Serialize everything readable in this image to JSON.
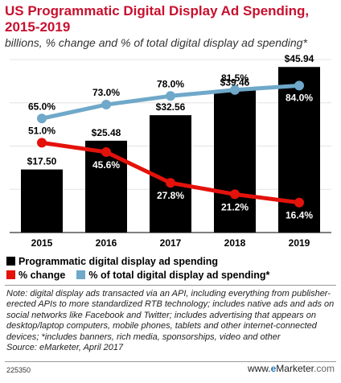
{
  "header": {
    "title": "US Programmatic Digital Display Ad Spending, 2015-2019",
    "subtitle": "billions, % change and % of total digital display ad spending*"
  },
  "chart_data": {
    "type": "bar",
    "categories": [
      "2015",
      "2016",
      "2017",
      "2018",
      "2019"
    ],
    "series": [
      {
        "name": "Programmatic digital display ad spending",
        "type": "bar",
        "values": [
          17.5,
          25.48,
          32.56,
          39.46,
          45.94
        ],
        "labels": [
          "$17.50",
          "$25.48",
          "$32.56",
          "$39.46",
          "$45.94"
        ],
        "color": "#000000"
      },
      {
        "name": "% change",
        "type": "line",
        "values": [
          51.0,
          45.6,
          27.8,
          21.2,
          16.4
        ],
        "labels": [
          "51.0%",
          "45.6%",
          "27.8%",
          "21.2%",
          "16.4%"
        ],
        "color": "#e3120b"
      },
      {
        "name": "% of total digital display ad spending*",
        "type": "line",
        "values": [
          65.0,
          73.0,
          78.0,
          81.5,
          84.0
        ],
        "labels": [
          "65.0%",
          "73.0%",
          "78.0%",
          "81.5%",
          "84.0%"
        ],
        "color": "#6fa8c9"
      }
    ],
    "legend_position": "bottom"
  },
  "note": {
    "text": "Note: digital display ads transacted via an API, including everything from publisher-erected APIs to more standardized RTB technology; includes native ads and ads on social networks like Facebook and Twitter; includes advertising that appears on desktop/laptop computers, mobile phones, tablets and other internet-connected devices; *includes banners, rich media, sponsorships, video and other",
    "source": "Source: eMarketer, April 2017"
  },
  "footer": {
    "chart_id": "225350",
    "brand_prefix": "www.",
    "brand_e": "e",
    "brand_name": "Marketer",
    "brand_suffix": ".com"
  }
}
